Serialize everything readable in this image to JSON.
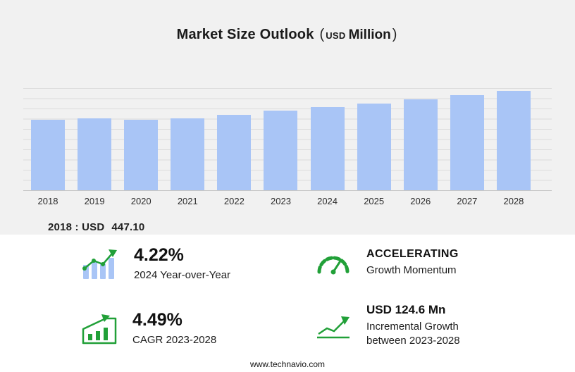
{
  "header": {
    "title": "Market Size Outlook",
    "paren_open": "(",
    "currency": "USD",
    "unit": "Million",
    "paren_close": ")"
  },
  "chart_data": {
    "type": "bar",
    "title": "Market Size Outlook (USD Million)",
    "categories": [
      "2018",
      "2019",
      "2020",
      "2021",
      "2022",
      "2023",
      "2024",
      "2025",
      "2026",
      "2027",
      "2028"
    ],
    "values": [
      447.1,
      455.0,
      450.2,
      456.9,
      480.0,
      507.3,
      528.7,
      552.4,
      577.2,
      603.1,
      631.9
    ],
    "ylim": [
      0,
      650
    ],
    "grid": true,
    "legend": "none",
    "bar_color": "#a9c5f6",
    "xlabel": "",
    "ylabel": ""
  },
  "annotation": {
    "label": "2018 : USD",
    "value": "447.10"
  },
  "stats": [
    {
      "icon": "yoy-bars-icon",
      "value": "4.22%",
      "label": "2024 Year-over-Year"
    },
    {
      "icon": "speedometer-icon",
      "value": "ACCELERATING",
      "label": "Growth Momentum"
    },
    {
      "icon": "cagr-chart-icon",
      "value": "4.49%",
      "label": "CAGR 2023-2028"
    },
    {
      "icon": "growth-arrow-icon",
      "value": "USD 124.6 Mn",
      "label": "Incremental Growth",
      "label2": "between 2023-2028"
    }
  ],
  "footer": {
    "url": "www.technavio.com"
  },
  "colors": {
    "background": "#f1f1f1",
    "panel": "#ffffff",
    "bar_blue": "#a9c5f6",
    "accent_green": "#21a038",
    "gridline": "#dcdcdc",
    "text": "#1a1a1a"
  }
}
